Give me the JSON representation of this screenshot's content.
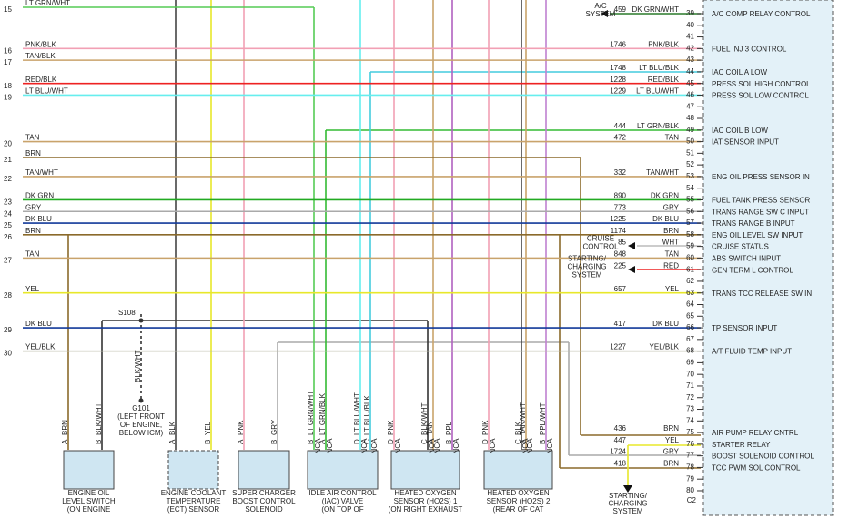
{
  "left_rows": [
    {
      "num": 15,
      "wire": "LT GRN/WHT"
    },
    {
      "num": 16,
      "wire": "PNK/BLK"
    },
    {
      "num": 17,
      "wire": "TAN/BLK"
    },
    {
      "num": 18,
      "wire": "RED/BLK"
    },
    {
      "num": 19,
      "wire": "LT BLU/WHT"
    },
    {
      "num": 20,
      "wire": "TAN"
    },
    {
      "num": 21,
      "wire": "BRN"
    },
    {
      "num": 22,
      "wire": "TAN/WHT"
    },
    {
      "num": 23,
      "wire": "DK GRN"
    },
    {
      "num": 24,
      "wire": "GRY"
    },
    {
      "num": 25,
      "wire": "DK BLU"
    },
    {
      "num": 26,
      "wire": "BRN"
    },
    {
      "num": 27,
      "wire": "TAN"
    },
    {
      "num": 28,
      "wire": "YEL"
    },
    {
      "num": 29,
      "wire": "DK BLU"
    },
    {
      "num": 30,
      "wire": "YEL/BLK"
    }
  ],
  "pins": [
    {
      "pin": 39,
      "circuit": "459",
      "wire": "DK GRN/WHT",
      "function": "A/C COMP RELAY CONTROL",
      "system": [
        "A/C",
        "SYSTEM"
      ]
    },
    {
      "pin": 40
    },
    {
      "pin": 41
    },
    {
      "pin": 42,
      "circuit": "1746",
      "wire": "PNK/BLK",
      "function": "FUEL INJ 3 CONTROL"
    },
    {
      "pin": 43
    },
    {
      "pin": 44,
      "circuit": "1748",
      "wire": "LT BLU/BLK",
      "function": "IAC COIL A LOW"
    },
    {
      "pin": 45,
      "circuit": "1228",
      "wire": "RED/BLK",
      "function": "PRESS SOL HIGH CONTROL"
    },
    {
      "pin": 46,
      "circuit": "1229",
      "wire": "LT BLU/WHT",
      "function": "PRESS SOL LOW CONTROL"
    },
    {
      "pin": 47
    },
    {
      "pin": 48
    },
    {
      "pin": 49,
      "circuit": "444",
      "wire": "LT GRN/BLK",
      "function": "IAC COIL B LOW"
    },
    {
      "pin": 50,
      "circuit": "472",
      "wire": "TAN",
      "function": "IAT SENSOR INPUT"
    },
    {
      "pin": 51
    },
    {
      "pin": 52
    },
    {
      "pin": 53,
      "circuit": "332",
      "wire": "TAN/WHT",
      "function": "ENG OIL PRESS SENSOR IN"
    },
    {
      "pin": 54
    },
    {
      "pin": 55,
      "circuit": "890",
      "wire": "DK GRN",
      "function": "FUEL TANK PRESS SENSOR"
    },
    {
      "pin": 56,
      "circuit": "773",
      "wire": "GRY",
      "function": "TRANS RANGE SW C INPUT"
    },
    {
      "pin": 57,
      "circuit": "1225",
      "wire": "DK BLU",
      "function": "TRANS RANGE B INPUT"
    },
    {
      "pin": 58,
      "circuit": "1174",
      "wire": "BRN",
      "function": "ENG OIL LEVEL SW INPUT"
    },
    {
      "pin": 59,
      "circuit": "85",
      "wire": "WHT",
      "function": "CRUISE STATUS",
      "system": [
        "CRUISE",
        "CONTROL"
      ]
    },
    {
      "pin": 60,
      "circuit": "848",
      "wire": "TAN",
      "function": "ABS SWITCH INPUT"
    },
    {
      "pin": 61,
      "circuit": "225",
      "wire": "RED",
      "function": "GEN TERM L CONTROL",
      "system": [
        "STARTING/",
        "CHARGING",
        "SYSTEM"
      ]
    },
    {
      "pin": 62
    },
    {
      "pin": 63,
      "circuit": "657",
      "wire": "YEL",
      "function": "TRANS TCC RELEASE SW IN"
    },
    {
      "pin": 64
    },
    {
      "pin": 65
    },
    {
      "pin": 66,
      "circuit": "417",
      "wire": "DK BLU",
      "function": "TP SENSOR INPUT"
    },
    {
      "pin": 67
    },
    {
      "pin": 68,
      "circuit": "1227",
      "wire": "YEL/BLK",
      "function": "A/T FLUID TEMP INPUT"
    },
    {
      "pin": 69
    },
    {
      "pin": 70
    },
    {
      "pin": 71
    },
    {
      "pin": 72
    },
    {
      "pin": 73
    },
    {
      "pin": 74
    },
    {
      "pin": 75,
      "circuit": "436",
      "wire": "BRN",
      "function": "AIR PUMP RELAY CNTRL"
    },
    {
      "pin": 76,
      "circuit": "447",
      "wire": "YEL",
      "function": "STARTER RELAY"
    },
    {
      "pin": 77,
      "circuit": "1724",
      "wire": "GRY",
      "function": "BOOST SOLENOID CONTROL"
    },
    {
      "pin": 78,
      "circuit": "418",
      "wire": "BRN",
      "function": "TCC PWM SOL CONTROL"
    },
    {
      "pin": 79
    },
    {
      "pin": 80
    }
  ],
  "connector": "C2",
  "splice": "S108",
  "ground": {
    "wire": "BLK/WHT",
    "lines": [
      "G101",
      "(LEFT FRONT",
      "OF ENGINE,",
      "BELOW ICM)"
    ]
  },
  "bottom_system": [
    "STARTING/",
    "CHARGING",
    "SYSTEM"
  ],
  "components": [
    {
      "lines": [
        "ENGINE OIL",
        "LEVEL SWITCH",
        "(ON ENGINE"
      ],
      "pins": [
        {
          "letter": "A",
          "wire": "BRN"
        },
        {
          "letter": "B",
          "wire": "BLK/WHT"
        }
      ]
    },
    {
      "lines": [
        "ENGINE COOLANT",
        "TEMPERATURE",
        "(ECT) SENSOR"
      ],
      "pins": [
        {
          "letter": "A",
          "wire": "BLK"
        },
        {
          "letter": "B",
          "wire": "YEL"
        }
      ]
    },
    {
      "lines": [
        "SUPER CHARGER",
        "BOOST CONTROL",
        "SOLENOID"
      ],
      "pins": [
        {
          "letter": "A",
          "wire": "PNK"
        },
        {
          "letter": "B",
          "wire": "GRY"
        }
      ]
    },
    {
      "lines": [
        "IDLE AIR CONTROL",
        "(IAC) VALVE",
        "(ON TOP OF"
      ],
      "pins": [
        {
          "letter": "B",
          "wire": "LT GRN/WHT",
          "note": "NCA"
        },
        {
          "letter": "A",
          "wire": "LT GRN/BLK",
          "note": "NCA"
        },
        {
          "letter": "D",
          "wire": "LT BLU/WHT",
          "note": "NCA"
        },
        {
          "letter": "C",
          "wire": "LT BLU/BLK",
          "note": "NCA"
        }
      ]
    },
    {
      "lines": [
        "HEATED OXYGEN",
        "SENSOR (HO2S) 1",
        "(ON RIGHT EXHAUST"
      ],
      "pins": [
        {
          "letter": "D",
          "wire": "PNK",
          "note": "NCA"
        },
        {
          "letter": "C",
          "wire": "BLK/WHT",
          "note": "NCA"
        },
        {
          "letter": "A",
          "wire": "TAN",
          "note": "NCA"
        },
        {
          "letter": "B",
          "wire": "PPL",
          "note": "NCA"
        }
      ]
    },
    {
      "lines": [
        "HEATED OXYGEN",
        "SENSOR (HO2S) 2",
        "(REAR OF CAT"
      ],
      "pins": [
        {
          "letter": "D",
          "wire": "PNK",
          "note": "NCA"
        },
        {
          "letter": "C",
          "wire": "BLK",
          "note": "NCA"
        },
        {
          "letter": "A",
          "wire": "TAN/WHT",
          "note": "NCA"
        },
        {
          "letter": "B",
          "wire": "PPL/WHT",
          "note": "NCA"
        }
      ]
    }
  ]
}
